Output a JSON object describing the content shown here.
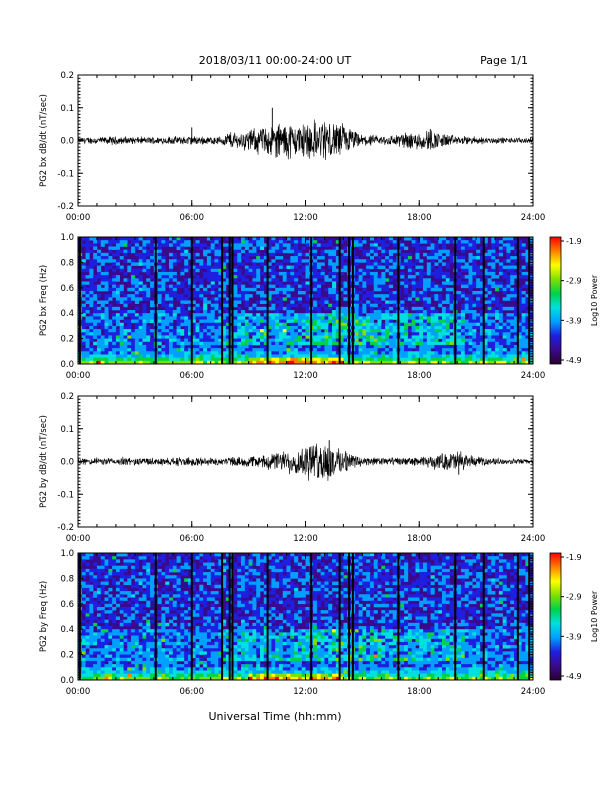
{
  "header": {
    "title": "2018/03/11  00:00-24:00 UT",
    "page": "Page 1/1"
  },
  "footer": {
    "xlabel": "Universal Time (hh:mm)"
  },
  "colors": {
    "colormap": [
      "#2a0030",
      "#3a0a8c",
      "#1f1fe0",
      "#00a0ff",
      "#00e0e0",
      "#00d24a",
      "#7fe000",
      "#ffff00",
      "#ff8000",
      "#ff0000"
    ],
    "dropout": "#000000"
  },
  "chart_data": [
    {
      "type": "line",
      "ylabel": "PG2 bx dB/dt (nT/sec)",
      "ylim": [
        -0.2,
        0.2
      ],
      "yticks": [
        "0.2",
        "0.1",
        "0.0",
        "-0.1",
        "-0.2"
      ],
      "xlim": [
        "00:00",
        "24:00"
      ],
      "xticks": [
        "00:00",
        "06:00",
        "12:00",
        "18:00",
        "24:00"
      ],
      "envelope_hours": [
        0,
        2,
        4,
        6,
        7.5,
        8,
        8.5,
        9,
        10,
        10.5,
        11,
        11.5,
        12,
        12.5,
        13,
        13.5,
        14,
        14.5,
        15,
        16,
        17,
        18,
        18.5,
        19,
        20,
        21,
        22,
        23,
        24
      ],
      "envelope_amplitude": [
        0.008,
        0.01,
        0.009,
        0.012,
        0.01,
        0.025,
        0.02,
        0.03,
        0.04,
        0.045,
        0.05,
        0.045,
        0.05,
        0.05,
        0.055,
        0.05,
        0.045,
        0.03,
        0.015,
        0.012,
        0.02,
        0.025,
        0.03,
        0.022,
        0.012,
        0.01,
        0.008,
        0.007,
        0.007
      ],
      "peaks": [
        {
          "x": "10:15",
          "y": 0.1
        },
        {
          "x": "06:00",
          "y": 0.04
        },
        {
          "x": "10:30",
          "y": -0.05
        },
        {
          "x": "18:35",
          "y": 0.035
        }
      ]
    },
    {
      "type": "heatmap",
      "ylabel": "PG2 bx Freq (Hz)",
      "ylim": [
        0.0,
        1.0
      ],
      "yticks": [
        "1.0",
        "0.8",
        "0.6",
        "0.4",
        "0.2",
        "0.0"
      ],
      "xlim": [
        "00:00",
        "24:00"
      ],
      "xticks": [
        "00:00",
        "06:00",
        "12:00",
        "18:00",
        "24:00"
      ],
      "colorbar": {
        "label": "Log10 Power",
        "range": [
          -4.9,
          -1.9
        ],
        "ticks": [
          "-1.9",
          "-2.9",
          "-3.9",
          "-4.9"
        ]
      },
      "dropout_hours": [
        0.1,
        4.1,
        6.0,
        7.6,
        8.0,
        8.15,
        10.0,
        12.3,
        13.8,
        14.3,
        14.5,
        16.9,
        19.9,
        21.4,
        23.2,
        23.8
      ]
    },
    {
      "type": "line",
      "ylabel": "PG2 by dB/dt (nT/sec)",
      "ylim": [
        -0.2,
        0.2
      ],
      "yticks": [
        "0.2",
        "0.1",
        "0.0",
        "-0.1",
        "-0.2"
      ],
      "xlim": [
        "00:00",
        "24:00"
      ],
      "xticks": [
        "00:00",
        "06:00",
        "12:00",
        "18:00",
        "24:00"
      ],
      "envelope_hours": [
        0,
        2,
        4,
        6,
        7.5,
        8,
        8.5,
        9,
        10,
        10.5,
        11,
        11.5,
        12,
        12.5,
        13,
        13.5,
        14,
        14.5,
        15,
        16,
        17,
        18,
        18.5,
        19,
        20,
        21,
        22,
        23,
        24
      ],
      "envelope_amplitude": [
        0.008,
        0.01,
        0.01,
        0.012,
        0.01,
        0.012,
        0.012,
        0.014,
        0.02,
        0.025,
        0.03,
        0.035,
        0.045,
        0.05,
        0.055,
        0.045,
        0.035,
        0.02,
        0.012,
        0.01,
        0.01,
        0.012,
        0.015,
        0.02,
        0.03,
        0.012,
        0.008,
        0.007,
        0.007
      ],
      "peaks": [
        {
          "x": "13:15",
          "y": 0.065
        },
        {
          "x": "20:05",
          "y": -0.04
        }
      ]
    },
    {
      "type": "heatmap",
      "ylabel": "PG2 by Freq (Hz)",
      "ylim": [
        0.0,
        1.0
      ],
      "yticks": [
        "1.0",
        "0.8",
        "0.6",
        "0.4",
        "0.2",
        "0.0"
      ],
      "xlim": [
        "00:00",
        "24:00"
      ],
      "xticks": [
        "00:00",
        "06:00",
        "12:00",
        "18:00",
        "24:00"
      ],
      "colorbar": {
        "label": "Log10 Power",
        "range": [
          -4.9,
          -1.9
        ],
        "ticks": [
          "-1.9",
          "-2.9",
          "-3.9",
          "-4.9"
        ]
      },
      "dropout_hours": [
        0.1,
        4.1,
        6.0,
        7.6,
        8.0,
        8.15,
        10.0,
        12.3,
        13.8,
        14.3,
        14.5,
        16.9,
        19.9,
        21.4,
        23.2,
        23.8
      ]
    }
  ]
}
